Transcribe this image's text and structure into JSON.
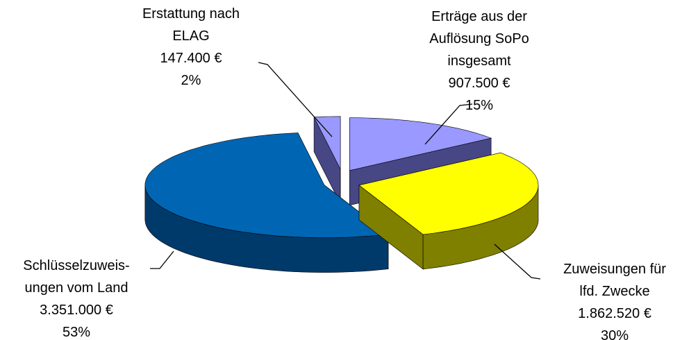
{
  "chart_data": {
    "type": "pie3d",
    "categories": [
      "Erträge aus der\nAuflösung SoPo\ninsgesamt",
      "Zuweisungen für\nlfd. Zwecke",
      "Schlüsselzuweis-\nungen vom Land",
      "Erstattung nach\nELAG"
    ],
    "values": [
      907500,
      1862520,
      3351000,
      147400
    ],
    "value_labels": [
      "907.500 €",
      "1.862.520 €",
      "3.351.000 €",
      "147.400 €"
    ],
    "percent_labels": [
      "15%",
      "30%",
      "53%",
      "2%"
    ],
    "colors": [
      "#9999ff",
      "#ffff00",
      "#0066b3",
      "#9999ff"
    ],
    "side_colors": [
      "#474785",
      "#7f7f00",
      "#003a6b",
      "#474785"
    ]
  }
}
